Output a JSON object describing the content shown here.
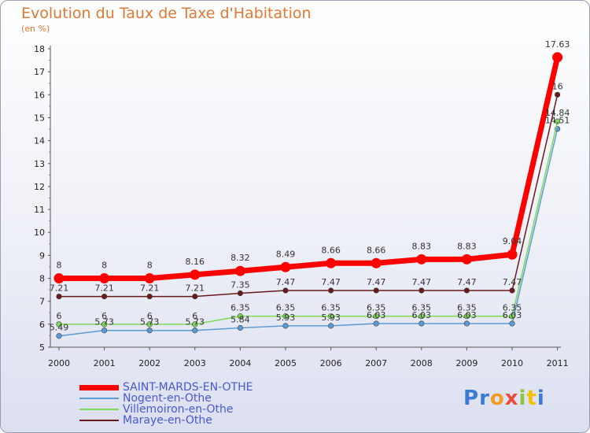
{
  "title": "Evolution du Taux de Taxe d'Habitation",
  "subtitle": "(en %)",
  "logo_text": "Proxiti",
  "chart_data": {
    "type": "line",
    "x": [
      "2000",
      "2001",
      "2002",
      "2003",
      "2004",
      "2005",
      "2006",
      "2007",
      "2008",
      "2009",
      "2010",
      "2011"
    ],
    "ylim": [
      5,
      18
    ],
    "yticks": [
      5,
      6,
      7,
      8,
      9,
      10,
      11,
      12,
      13,
      14,
      15,
      16,
      17,
      18
    ],
    "grid": false,
    "legend_position": "bottom-left",
    "series": [
      {
        "name": "SAINT-MARDS-EN-OTHE",
        "color": "#ff0000",
        "values": [
          8,
          8,
          8,
          8.16,
          8.32,
          8.49,
          8.66,
          8.66,
          8.83,
          8.83,
          9.04,
          17.63
        ],
        "labels": [
          "8",
          "8",
          "8",
          "8.16",
          "8.32",
          "8.49",
          "8.66",
          "8.66",
          "8.83",
          "8.83",
          "9.04",
          "17.63"
        ]
      },
      {
        "name": "Nogent-en-Othe",
        "color": "#5b9bd5",
        "values": [
          5.49,
          5.73,
          5.73,
          5.73,
          5.84,
          5.93,
          5.93,
          6.03,
          6.03,
          6.03,
          6.03,
          14.51
        ],
        "labels": [
          "5.49",
          "5.73",
          "5.73",
          "5.73",
          "5.84",
          "5.93",
          "5.93",
          "6.03",
          "6.03",
          "6.03",
          "6.03",
          "14.51"
        ]
      },
      {
        "name": "Villemoiron-en-Othe",
        "color": "#7ed957",
        "values": [
          6,
          6,
          6,
          6,
          6.35,
          6.35,
          6.35,
          6.35,
          6.35,
          6.35,
          6.35,
          14.84
        ],
        "labels": [
          "6",
          "6",
          "6",
          "6",
          "6.35",
          "6.35",
          "6.35",
          "6.35",
          "6.35",
          "6.35",
          "6.35",
          "14.84"
        ]
      },
      {
        "name": "Maraye-en-Othe",
        "color": "#6b1a1a",
        "values": [
          7.21,
          7.21,
          7.21,
          7.21,
          7.35,
          7.47,
          7.47,
          7.47,
          7.47,
          7.47,
          7.47,
          16
        ],
        "labels": [
          "7.21",
          "7.21",
          "7.21",
          "7.21",
          "7.35",
          "7.47",
          "7.47",
          "7.47",
          "7.47",
          "7.47",
          "7.47",
          "16"
        ]
      }
    ]
  }
}
